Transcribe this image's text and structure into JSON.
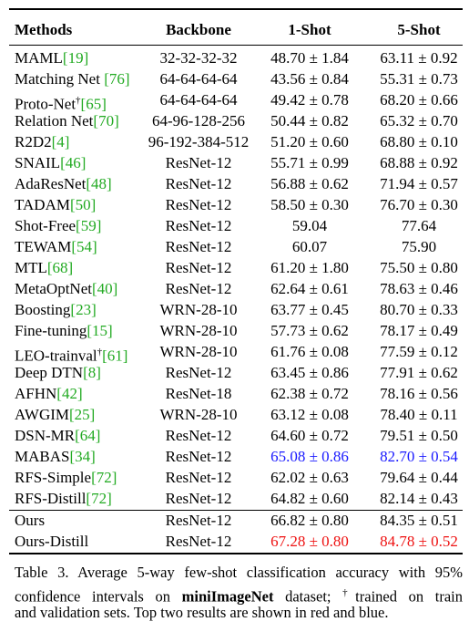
{
  "table": {
    "header": [
      "Methods",
      "Backbone",
      "1-Shot",
      "5-Shot"
    ],
    "rows": [
      {
        "method": "MAML",
        "cite": "[19]",
        "backbone": "32-32-32-32",
        "shot1": "48.70 ± 1.84",
        "shot5": "63.11 ± 0.92"
      },
      {
        "method": "Matching Net ",
        "cite": "[76]",
        "backbone": "64-64-64-64",
        "shot1": "43.56 ± 0.84",
        "shot5": "55.31 ± 0.73"
      },
      {
        "method": "Proto-Net",
        "sup": "†",
        "cite": "[65]",
        "backbone": "64-64-64-64",
        "shot1": "49.42 ± 0.78",
        "shot5": "68.20 ± 0.66"
      },
      {
        "method": "Relation Net",
        "cite": "[70]",
        "backbone": "64-96-128-256",
        "shot1": "50.44 ± 0.82",
        "shot5": "65.32 ± 0.70"
      },
      {
        "method": "R2D2",
        "cite": "[4]",
        "backbone": "96-192-384-512",
        "shot1": "51.20 ± 0.60",
        "shot5": "68.80 ± 0.10"
      },
      {
        "method": "SNAIL",
        "cite": "[46]",
        "backbone": "ResNet-12",
        "shot1": "55.71 ± 0.99",
        "shot5": "68.88 ± 0.92"
      },
      {
        "method": "AdaResNet",
        "cite": "[48]",
        "backbone": "ResNet-12",
        "shot1": "56.88 ± 0.62",
        "shot5": "71.94 ± 0.57"
      },
      {
        "method": "TADAM",
        "cite": "[50]",
        "backbone": "ResNet-12",
        "shot1": "58.50 ± 0.30",
        "shot5": "76.70 ± 0.30"
      },
      {
        "method": "Shot-Free",
        "cite": "[59]",
        "backbone": "ResNet-12",
        "shot1": "59.04",
        "shot5": "77.64"
      },
      {
        "method": "TEWAM",
        "cite": "[54]",
        "backbone": "ResNet-12",
        "shot1": "60.07",
        "shot5": "75.90"
      },
      {
        "method": "MTL",
        "cite": "[68]",
        "backbone": "ResNet-12",
        "shot1": "61.20 ± 1.80",
        "shot5": "75.50 ± 0.80"
      },
      {
        "method": "MetaOptNet",
        "cite": "[40]",
        "backbone": "ResNet-12",
        "shot1": "62.64 ± 0.61",
        "shot5": "78.63 ± 0.46"
      },
      {
        "method": "Boosting",
        "cite": "[23]",
        "backbone": "WRN-28-10",
        "shot1": "63.77 ± 0.45",
        "shot5": "80.70 ± 0.33"
      },
      {
        "method": "Fine-tuning",
        "cite": "[15]",
        "backbone": "WRN-28-10",
        "shot1": "57.73 ± 0.62",
        "shot5": "78.17 ± 0.49"
      },
      {
        "method": "LEO-trainval",
        "sup": "†",
        "cite": "[61]",
        "backbone": "WRN-28-10",
        "shot1": "61.76 ± 0.08",
        "shot5": "77.59 ± 0.12"
      },
      {
        "method": "Deep DTN",
        "cite": "[8]",
        "backbone": "ResNet-12",
        "shot1": "63.45 ± 0.86",
        "shot5": "77.91 ± 0.62"
      },
      {
        "method": "AFHN",
        "cite": "[42]",
        "backbone": "ResNet-18",
        "shot1": "62.38 ± 0.72",
        "shot5": "78.16 ± 0.56"
      },
      {
        "method": "AWGIM",
        "cite": "[25]",
        "backbone": "WRN-28-10",
        "shot1": "63.12 ± 0.08",
        "shot5": "78.40 ± 0.11"
      },
      {
        "method": "DSN-MR",
        "cite": "[64]",
        "backbone": "ResNet-12",
        "shot1": "64.60 ± 0.72",
        "shot5": "79.51 ± 0.50"
      },
      {
        "method": "MABAS",
        "cite": "[34]",
        "backbone": "ResNet-12",
        "shot1": "65.08 ± 0.86",
        "shot5": "82.70 ± 0.54",
        "color": "#1a1aff"
      },
      {
        "method": "RFS-Simple",
        "cite": "[72]",
        "backbone": "ResNet-12",
        "shot1": "62.02 ± 0.63",
        "shot5": "79.64 ± 0.44"
      },
      {
        "method": "RFS-Distill",
        "cite": "[72]",
        "backbone": "ResNet-12",
        "shot1": "64.82 ± 0.60",
        "shot5": "82.14 ± 0.43"
      }
    ],
    "our_rows": [
      {
        "method": "Ours",
        "backbone": "ResNet-12",
        "shot1": "66.82 ± 0.80",
        "shot5": "84.35 ± 0.51"
      },
      {
        "method": "Ours-Distill",
        "backbone": "ResNet-12",
        "shot1": "67.28 ± 0.80",
        "shot5": "84.78 ± 0.52",
        "color": "#ee1111"
      }
    ]
  },
  "caption": [
    [
      {
        "text": "Table 3. Average 5-way few-shot classification accuracy with 95%"
      }
    ],
    [
      {
        "text": "confidence intervals on "
      },
      {
        "text": "miniImageNet",
        "style": "bold"
      },
      {
        "text": " dataset; "
      },
      {
        "text": "†",
        "style": "sup"
      },
      {
        "text": "trained on train"
      }
    ],
    [
      {
        "text": "and validation sets. Top two results are shown in red and blue."
      }
    ]
  ]
}
